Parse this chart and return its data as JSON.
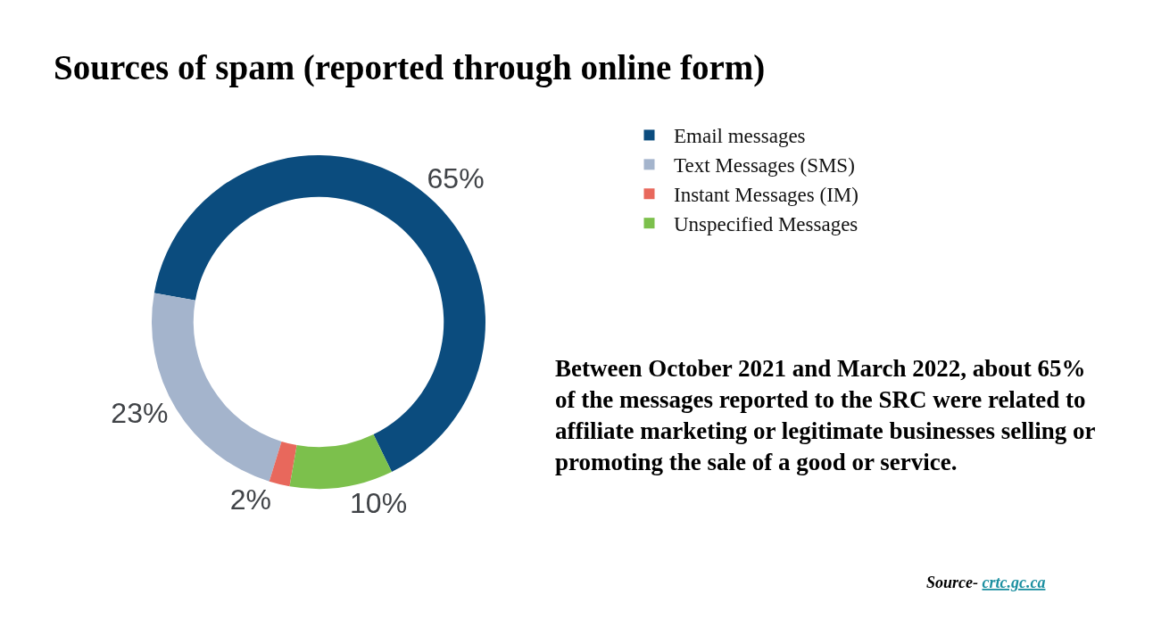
{
  "chart_data": {
    "type": "donut",
    "title": "Sources of spam (reported through online form)",
    "categories": [
      "Email messages",
      "Text Messages (SMS)",
      "Instant Messages (IM)",
      "Unspecified Messages"
    ],
    "values": [
      65,
      23,
      2,
      10
    ],
    "colors": [
      "#0b4c7e",
      "#a4b4cc",
      "#e8685c",
      "#7cc04c"
    ],
    "value_labels": [
      "65%",
      "23%",
      "2%",
      "10%"
    ],
    "legend": "top right",
    "annotations": [
      "Between October 2021 and March 2022, about 65%\nof the messages reported to the SRC were related to\naffiliate marketing or legitimate businesses selling or\npromoting the sale of a good or service.",
      "Source- crtc.gc.ca"
    ]
  }
}
